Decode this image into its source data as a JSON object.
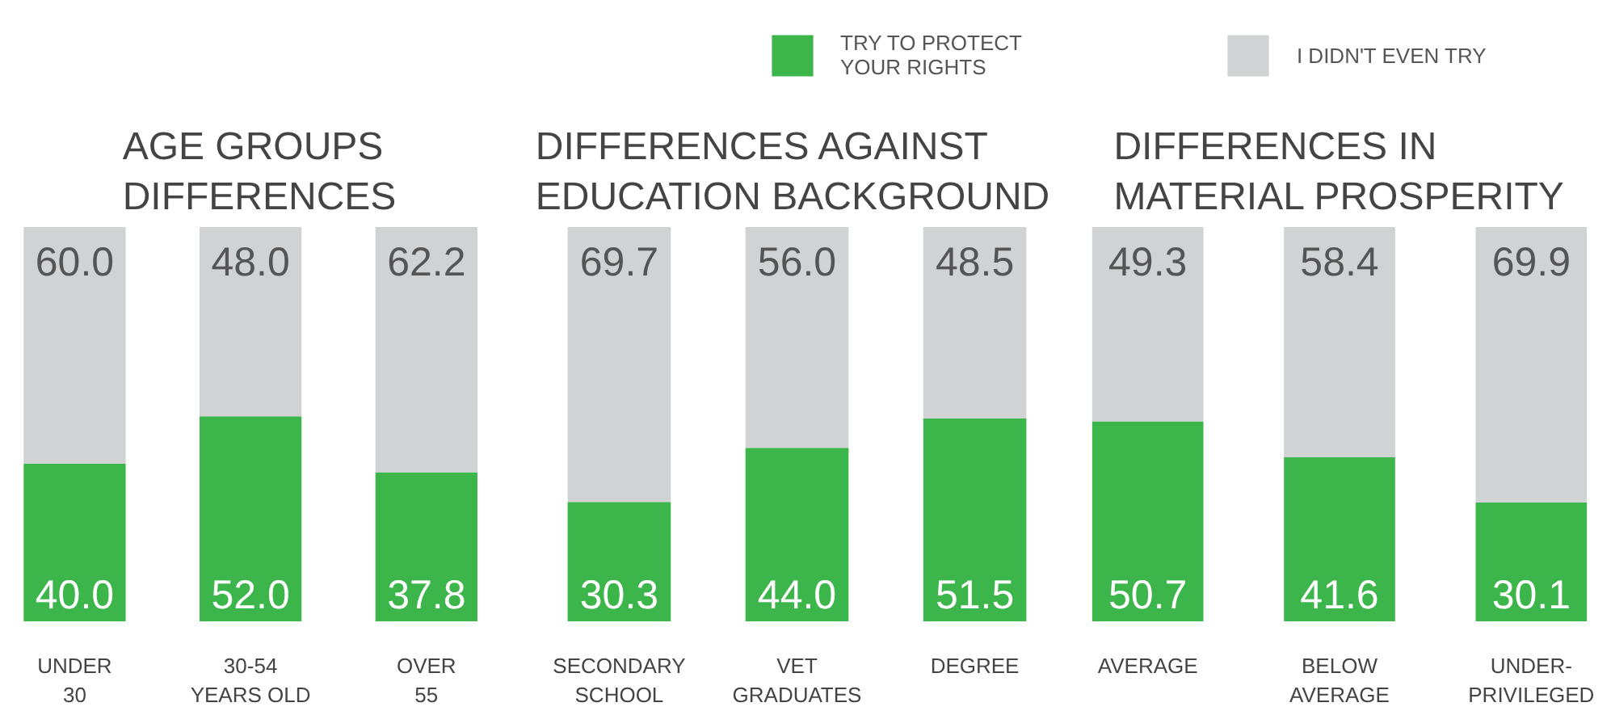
{
  "chart_data": [
    {
      "type": "bar",
      "title": "AGE GROUPS\nDIFFERENCES",
      "categories": [
        "UNDER\n30",
        "30-54\nYEARS OLD",
        "OVER\n55"
      ],
      "stacked": true,
      "series": [
        {
          "color": "#3cb54a",
          "values": [
            40.0,
            52.0,
            37.8
          ],
          "value_labels": [
            "40.0",
            "52.0",
            "37.8"
          ]
        },
        {
          "color": "#d1d2d4",
          "values": [
            60.0,
            48.0,
            62.2
          ],
          "value_labels": [
            "60.0",
            "48.0",
            "62.2"
          ]
        }
      ]
    },
    {
      "type": "bar",
      "title": "DIFFERENCES AGAINST\nEDUCATION BACKGROUND",
      "categories": [
        "SECONDARY\nSCHOOL",
        "VET\nGRADUATES",
        "DEGREE"
      ],
      "stacked": true,
      "series": [
        {
          "color": "#3cb54a",
          "values": [
            30.3,
            44.0,
            51.5
          ],
          "value_labels": [
            "30.3",
            "44.0",
            "51.5"
          ]
        },
        {
          "color": "#d1d2d4",
          "values": [
            69.7,
            56.0,
            48.5
          ],
          "value_labels": [
            "69.7",
            "56.0",
            "48.5"
          ]
        }
      ]
    },
    {
      "type": "bar",
      "title": "DIFFERENCES IN\nMATERIAL PROSPERITY",
      "categories": [
        "AVERAGE",
        "BELOW\nAVERAGE",
        "UNDER-\nPRIVILEGED"
      ],
      "stacked": true,
      "legend": "top",
      "series": [
        {
          "name": "TRY TO PROTECT\nYOUR RIGHTS",
          "color": "#3cb54a",
          "values": [
            50.7,
            41.6,
            30.1
          ],
          "value_labels": [
            "50.7",
            "41.6",
            "30.1"
          ]
        },
        {
          "name": "I DIDN'T EVEN TRY",
          "color": "#d1d2d4",
          "values": [
            49.3,
            58.4,
            69.9
          ],
          "value_labels": [
            "49.3",
            "58.4",
            "69.9"
          ]
        }
      ]
    }
  ]
}
